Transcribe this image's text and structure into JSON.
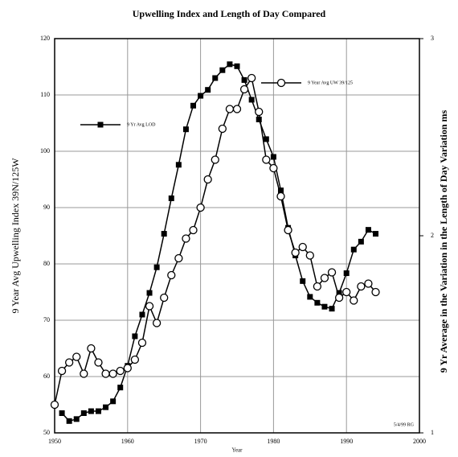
{
  "chart_data": {
    "type": "line",
    "title": "Upwelling Index and Length of Day Compared",
    "xlabel": "Year",
    "ylabel": "9 Year Avg Upwelling Index 39N/125W",
    "y2label": "9 Yr Average in the Variation in the Length of Day Variation ms",
    "note": "5/4/99 RG",
    "xlim": [
      1950,
      2000
    ],
    "xticks": [
      1950,
      1960,
      1970,
      1980,
      1990,
      2000
    ],
    "ylim": [
      50,
      120
    ],
    "yticks": [
      50,
      60,
      70,
      80,
      90,
      100,
      110,
      120
    ],
    "y2lim": [
      1,
      3
    ],
    "y2ticks": [
      1,
      2,
      3
    ],
    "grid": true,
    "series": [
      {
        "name": "9 Yr Avg LOD",
        "color": "#000000",
        "marker": "square",
        "axis": "y2",
        "x": [
          1951,
          1952,
          1953,
          1954,
          1955,
          1956,
          1957,
          1958,
          1959,
          1960,
          1961,
          1962,
          1963,
          1964,
          1965,
          1966,
          1967,
          1968,
          1969,
          1970,
          1971,
          1972,
          1973,
          1974,
          1975,
          1976,
          1977,
          1978,
          1979,
          1980,
          1981,
          1982,
          1983,
          1984,
          1985,
          1986,
          1987,
          1988,
          1989,
          1990,
          1991,
          1992,
          1993,
          1994
        ],
        "values": [
          1.1,
          1.06,
          1.07,
          1.1,
          1.11,
          1.11,
          1.13,
          1.16,
          1.23,
          1.34,
          1.49,
          1.6,
          1.71,
          1.84,
          2.01,
          2.19,
          2.36,
          2.54,
          2.66,
          2.71,
          2.74,
          2.8,
          2.84,
          2.87,
          2.86,
          2.79,
          2.69,
          2.59,
          2.49,
          2.4,
          2.23,
          2.04,
          1.9,
          1.77,
          1.69,
          1.66,
          1.64,
          1.63,
          1.71,
          1.81,
          1.93,
          1.97,
          2.03,
          2.01
        ]
      },
      {
        "name": "9 Year Avg UW 39/125",
        "color": "#000000",
        "marker": "circle",
        "x": [
          1950,
          1951,
          1952,
          1953,
          1954,
          1955,
          1956,
          1957,
          1958,
          1959,
          1960,
          1961,
          1962,
          1963,
          1964,
          1965,
          1966,
          1967,
          1968,
          1969,
          1970,
          1971,
          1972,
          1973,
          1974,
          1975,
          1976,
          1977,
          1978,
          1979,
          1980,
          1981,
          1982,
          1983,
          1984,
          1985,
          1986,
          1987,
          1988,
          1989,
          1990,
          1991,
          1992,
          1993,
          1994
        ],
        "values": [
          55,
          61,
          62.5,
          63.5,
          60.5,
          65,
          62.5,
          60.5,
          60.5,
          61,
          61.5,
          63,
          66,
          72.5,
          69.5,
          74,
          78,
          81,
          84.5,
          86,
          90,
          95,
          98.5,
          104,
          107.5,
          107.5,
          111,
          113,
          107,
          98.5,
          97,
          92,
          86,
          82,
          83,
          81.5,
          76,
          77.5,
          78.5,
          74,
          75,
          73.5,
          76,
          76.5,
          75
        ]
      }
    ]
  }
}
